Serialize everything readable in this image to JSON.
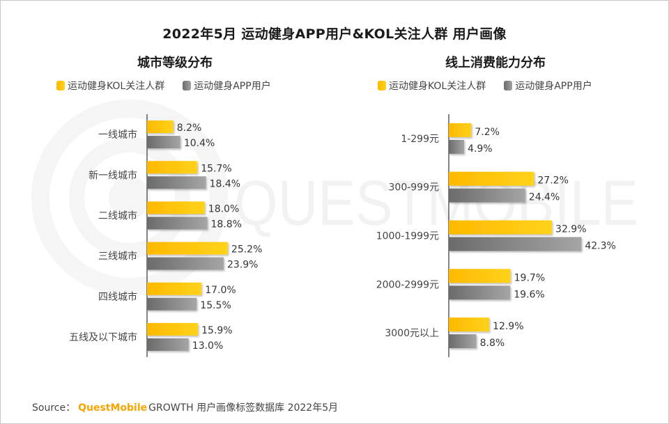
{
  "title": "2022年5月 运动健身APP用户&KOL关注人群 用户画像",
  "watermark": "QUESTMOBILE",
  "legend": {
    "kol": "运动健身KOL关注人群",
    "app": "运动健身APP用户"
  },
  "colors": {
    "kol_start": "#ffb900",
    "kol_end": "#ffd21a",
    "app_start": "#6b6b6b",
    "app_end": "#a5a5a5"
  },
  "chart_data": [
    {
      "type": "bar",
      "orientation": "horizontal",
      "title": "城市等级分布",
      "categories": [
        "一线城市",
        "新一线城市",
        "二线城市",
        "三线城市",
        "四线城市",
        "五线及以下城市"
      ],
      "series": [
        {
          "name": "运动健身KOL关注人群",
          "values": [
            8.2,
            15.7,
            18.0,
            25.2,
            17.0,
            15.9
          ],
          "labels": [
            "8.2%",
            "15.7%",
            "18.0%",
            "25.2%",
            "17.0%",
            "15.9%"
          ]
        },
        {
          "name": "运动健身APP用户",
          "values": [
            10.4,
            18.4,
            18.8,
            23.9,
            15.5,
            13.0
          ],
          "labels": [
            "10.4%",
            "18.4%",
            "18.8%",
            "23.9%",
            "15.5%",
            "13.0%"
          ]
        }
      ],
      "unit": "%",
      "legend_position": "top"
    },
    {
      "type": "bar",
      "orientation": "horizontal",
      "title": "线上消费能力分布",
      "categories": [
        "1-299元",
        "300-999元",
        "1000-1999元",
        "2000-2999元",
        "3000元以上"
      ],
      "series": [
        {
          "name": "运动健身KOL关注人群",
          "values": [
            7.2,
            27.2,
            32.9,
            19.7,
            12.9
          ],
          "labels": [
            "7.2%",
            "27.2%",
            "32.9%",
            "19.7%",
            "12.9%"
          ]
        },
        {
          "name": "运动健身APP用户",
          "values": [
            4.9,
            24.4,
            42.3,
            19.6,
            8.8
          ],
          "labels": [
            "4.9%",
            "24.4%",
            "42.3%",
            "19.6%",
            "8.8%"
          ]
        }
      ],
      "unit": "%",
      "legend_position": "top"
    }
  ],
  "footer": {
    "source_label": "Source：",
    "brand": "QuestMobile",
    "text": "GROWTH 用户画像标签数据库 2022年5月"
  }
}
